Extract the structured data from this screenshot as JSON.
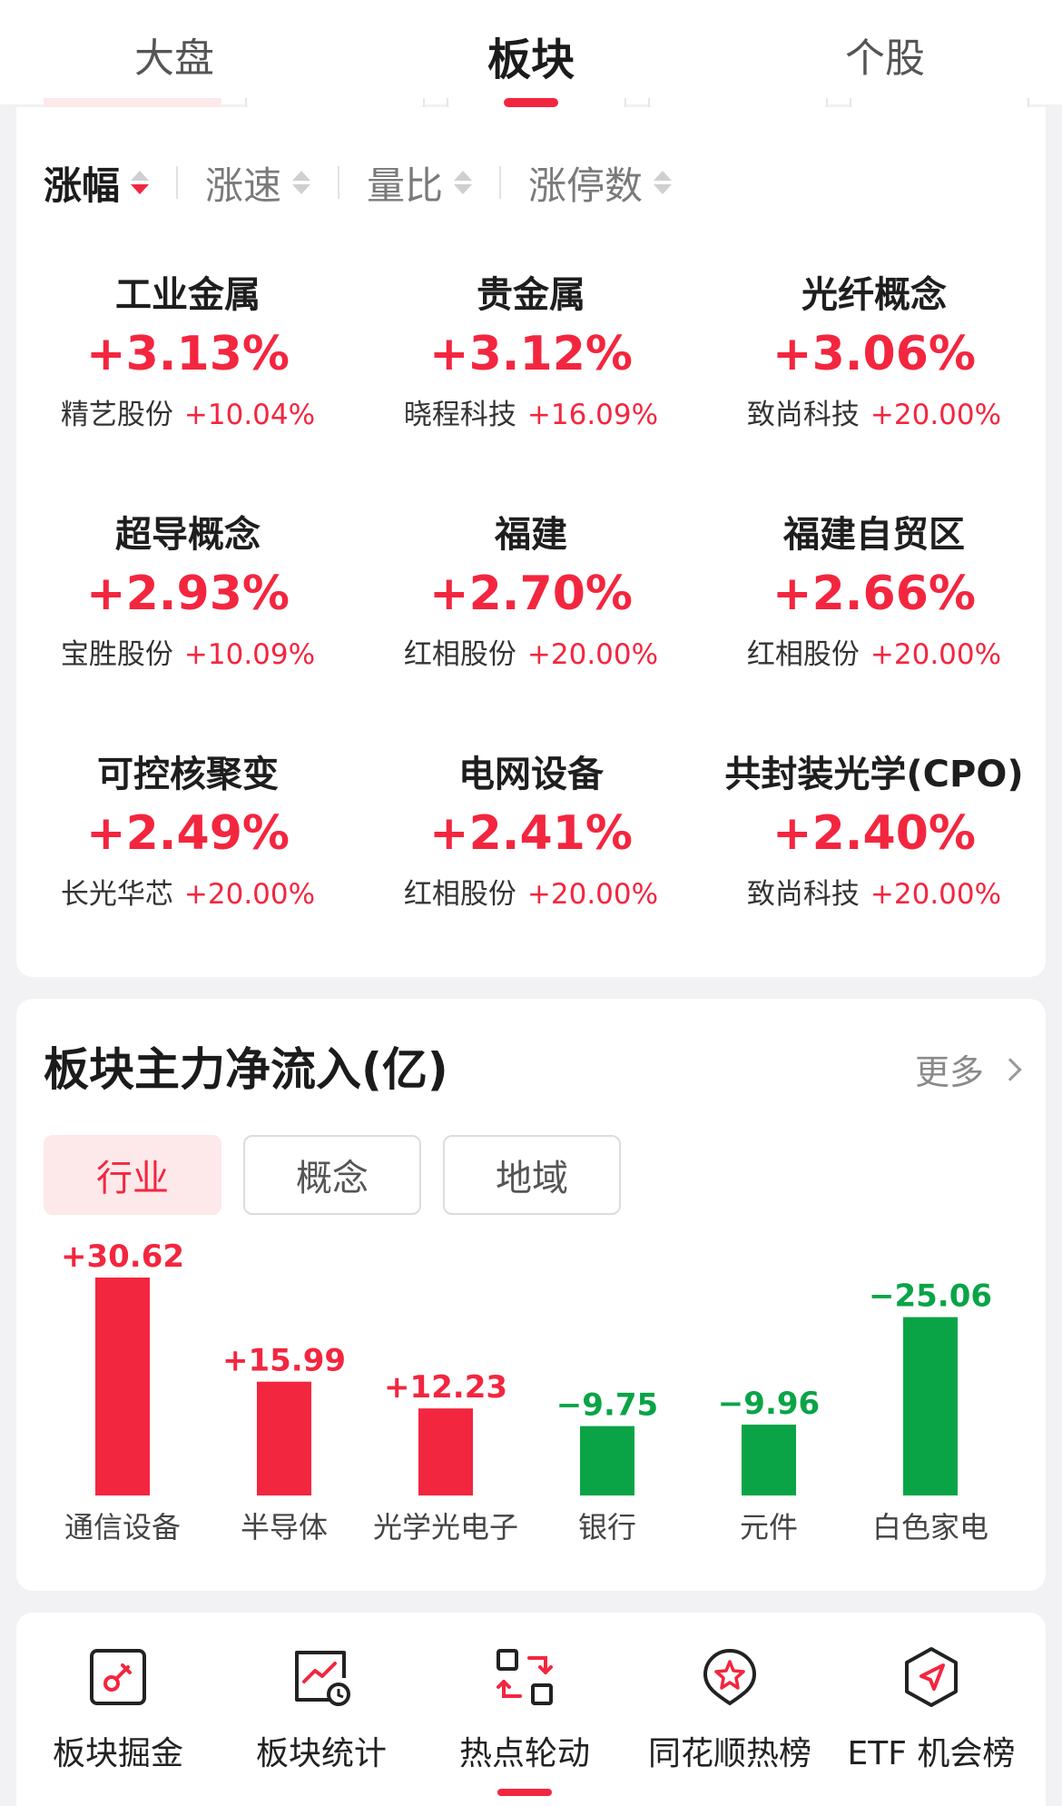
{
  "top_tabs": [
    {
      "label": "大盘",
      "active": false
    },
    {
      "label": "板块",
      "active": true
    },
    {
      "label": "个股",
      "active": false
    }
  ],
  "sort_bar": [
    {
      "label": "涨幅",
      "active": true
    },
    {
      "label": "涨速",
      "active": false
    },
    {
      "label": "量比",
      "active": false
    },
    {
      "label": "涨停数",
      "active": false
    }
  ],
  "sectors": [
    {
      "name": "工业金属",
      "pct": "+3.13%",
      "stock": "精艺股份",
      "stock_pct": "+10.04%"
    },
    {
      "name": "贵金属",
      "pct": "+3.12%",
      "stock": "晓程科技",
      "stock_pct": "+16.09%"
    },
    {
      "name": "光纤概念",
      "pct": "+3.06%",
      "stock": "致尚科技",
      "stock_pct": "+20.00%"
    },
    {
      "name": "超导概念",
      "pct": "+2.93%",
      "stock": "宝胜股份",
      "stock_pct": "+10.09%"
    },
    {
      "name": "福建",
      "pct": "+2.70%",
      "stock": "红相股份",
      "stock_pct": "+20.00%"
    },
    {
      "name": "福建自贸区",
      "pct": "+2.66%",
      "stock": "红相股份",
      "stock_pct": "+20.00%"
    },
    {
      "name": "可控核聚变",
      "pct": "+2.49%",
      "stock": "长光华芯",
      "stock_pct": "+20.00%"
    },
    {
      "name": "电网设备",
      "pct": "+2.41%",
      "stock": "红相股份",
      "stock_pct": "+20.00%"
    },
    {
      "name": "共封装光学(CPO)",
      "pct": "+2.40%",
      "stock": "致尚科技",
      "stock_pct": "+20.00%"
    }
  ],
  "flow_card": {
    "title": "板块主力净流入(亿)",
    "more_label": "更多",
    "segments": [
      {
        "label": "行业",
        "active": true
      },
      {
        "label": "概念",
        "active": false
      },
      {
        "label": "地域",
        "active": false
      }
    ]
  },
  "chart_data": {
    "type": "bar",
    "categories": [
      "通信设备",
      "半导体",
      "光学光电子",
      "银行",
      "元件",
      "白色家电"
    ],
    "values": [
      30.62,
      15.99,
      12.23,
      -9.75,
      -9.96,
      -25.06
    ],
    "labels": [
      "+30.62",
      "+15.99",
      "+12.23",
      "−9.75",
      "−9.96",
      "−25.06"
    ],
    "colors": {
      "positive": "#f3263f",
      "negative": "#0aa447"
    }
  },
  "toolbar": [
    {
      "label": "板块掘金",
      "icon": "dig-gold-icon"
    },
    {
      "label": "板块统计",
      "icon": "stats-clock-icon"
    },
    {
      "label": "热点轮动",
      "icon": "rotation-icon"
    },
    {
      "label": "同花顺热榜",
      "icon": "hot-rank-icon"
    },
    {
      "label": "ETF 机会榜",
      "icon": "etf-navigation-icon"
    }
  ],
  "colors": {
    "accent": "#f3263f",
    "down": "#0aa447"
  }
}
